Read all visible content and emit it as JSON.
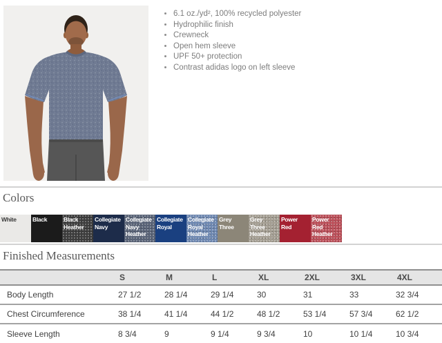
{
  "product": {
    "features": [
      "6.1 oz./yd², 100% recycled polyester",
      "Hydrophilic finish",
      "Crewneck",
      "Open hem sleeve",
      "UPF 50+ protection",
      "Contrast adidas logo on left sleeve"
    ]
  },
  "colors_section": {
    "heading": "Colors",
    "swatches": [
      {
        "name": "White",
        "bg": "#eae9e7",
        "text_color": "#3a3a3a",
        "heather": false
      },
      {
        "name": "Black",
        "bg": "#1b1b1b",
        "text_color": "#ffffff",
        "heather": false
      },
      {
        "name": "Black Heather",
        "bg": "#3d3d3d",
        "text_color": "#ffffff",
        "heather": true
      },
      {
        "name": "Collegiate Navy",
        "bg": "#1d2c4a",
        "text_color": "#ffffff",
        "heather": false
      },
      {
        "name": "Collegiate Navy Heather",
        "bg": "#596377",
        "text_color": "#ffffff",
        "heather": true
      },
      {
        "name": "Collegiate Royal",
        "bg": "#1a4080",
        "text_color": "#ffffff",
        "heather": false
      },
      {
        "name": "Collegiate Royal Heather",
        "bg": "#6e88b1",
        "text_color": "#ffffff",
        "heather": true
      },
      {
        "name": "Grey Three",
        "bg": "#8c8678",
        "text_color": "#ffffff",
        "heather": false
      },
      {
        "name": "Grey Three Heather",
        "bg": "#a49e92",
        "text_color": "#ffffff",
        "heather": true
      },
      {
        "name": "Power Red",
        "bg": "#a42131",
        "text_color": "#ffffff",
        "heather": false
      },
      {
        "name": "Power Red Heather",
        "bg": "#bb4f59",
        "text_color": "#ffffff",
        "heather": true
      }
    ]
  },
  "measurements": {
    "heading": "Finished Measurements",
    "columns": [
      "S",
      "M",
      "L",
      "XL",
      "2XL",
      "3XL",
      "4XL"
    ],
    "rows": [
      {
        "label": "Body Length",
        "values": [
          "27 1/2",
          "28 1/4",
          "29 1/4",
          "30",
          "31",
          "33",
          "32 3/4"
        ]
      },
      {
        "label": "Chest Circumference",
        "values": [
          "38 1/4",
          "41 1/4",
          "44 1/2",
          "48 1/2",
          "53 1/4",
          "57 3/4",
          "62 1/2"
        ]
      },
      {
        "label": "Sleeve Length",
        "values": [
          "8 3/4",
          "9",
          "9 1/4",
          "9 3/4",
          "10",
          "10 1/4",
          "10 3/4"
        ]
      }
    ]
  }
}
